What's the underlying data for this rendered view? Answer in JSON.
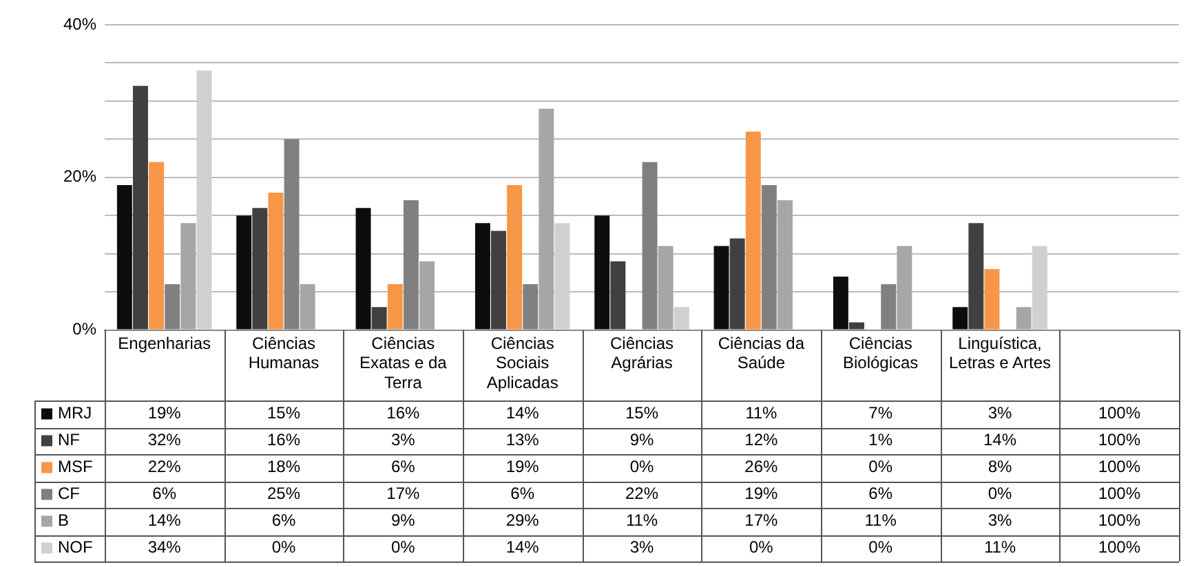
{
  "chart_data": {
    "type": "bar",
    "categories": [
      "Engenharias",
      "Ciências Humanas",
      "Ciências Exatas e da Terra",
      "Ciências Sociais Aplicadas",
      "Ciências Agrárias",
      "Ciências da Saúde",
      "Ciências Biológicas",
      "Linguística, Letras e Artes",
      null
    ],
    "series": [
      {
        "name": "MRJ",
        "color": "#0d0d0d",
        "values": [
          19,
          15,
          16,
          14,
          15,
          11,
          7,
          3,
          null
        ],
        "value_labels": [
          "19%",
          "15%",
          "16%",
          "14%",
          "15%",
          "11%",
          "7%",
          "3%",
          null
        ]
      },
      {
        "name": "NF",
        "color": "#404040",
        "values": [
          32,
          16,
          3,
          13,
          9,
          12,
          1,
          14,
          null
        ],
        "value_labels": [
          "32%",
          "16%",
          "3%",
          "13%",
          "9%",
          "12%",
          "1%",
          "14%",
          null
        ]
      },
      {
        "name": "MSF",
        "color": "#f79646",
        "values": [
          22,
          18,
          6,
          19,
          0,
          26,
          0,
          8,
          null
        ],
        "value_labels": [
          "22%",
          "18%",
          "6%",
          "19%",
          "0%",
          "26%",
          "0%",
          "8%",
          null
        ]
      },
      {
        "name": "CF",
        "color": "#808080",
        "values": [
          6,
          25,
          17,
          6,
          22,
          19,
          6,
          0,
          null
        ],
        "value_labels": [
          "6%",
          "25%",
          "17%",
          "6%",
          "22%",
          "19%",
          "6%",
          "0%",
          null
        ]
      },
      {
        "name": "B",
        "color": "#a6a6a6",
        "values": [
          14,
          6,
          9,
          29,
          11,
          17,
          11,
          3,
          null
        ],
        "value_labels": [
          "14%",
          "6%",
          "9%",
          "29%",
          "11%",
          "17%",
          "11%",
          "3%",
          null
        ]
      },
      {
        "name": "NOF",
        "color": "#d0d0d0",
        "values": [
          34,
          0,
          0,
          14,
          3,
          0,
          0,
          11,
          null
        ],
        "value_labels": [
          "34%",
          "0%",
          "0%",
          "14%",
          "3%",
          "0%",
          "0%",
          "11%",
          null
        ]
      }
    ],
    "annotations": [
      "100%",
      "100%",
      "100%",
      "100%",
      "100%",
      "100%"
    ],
    "ylim": [
      0,
      40
    ],
    "yticks": [
      {
        "value": 0,
        "label": "0%"
      },
      {
        "value": 5,
        "label": null
      },
      {
        "value": 10,
        "label": null
      },
      {
        "value": 15,
        "label": null
      },
      {
        "value": 20,
        "label": "20%"
      },
      {
        "value": 25,
        "label": null
      },
      {
        "value": 30,
        "label": null
      },
      {
        "value": 35,
        "label": null
      },
      {
        "value": 40,
        "label": "40%"
      }
    ],
    "grid": "y",
    "legend": "bottom"
  }
}
